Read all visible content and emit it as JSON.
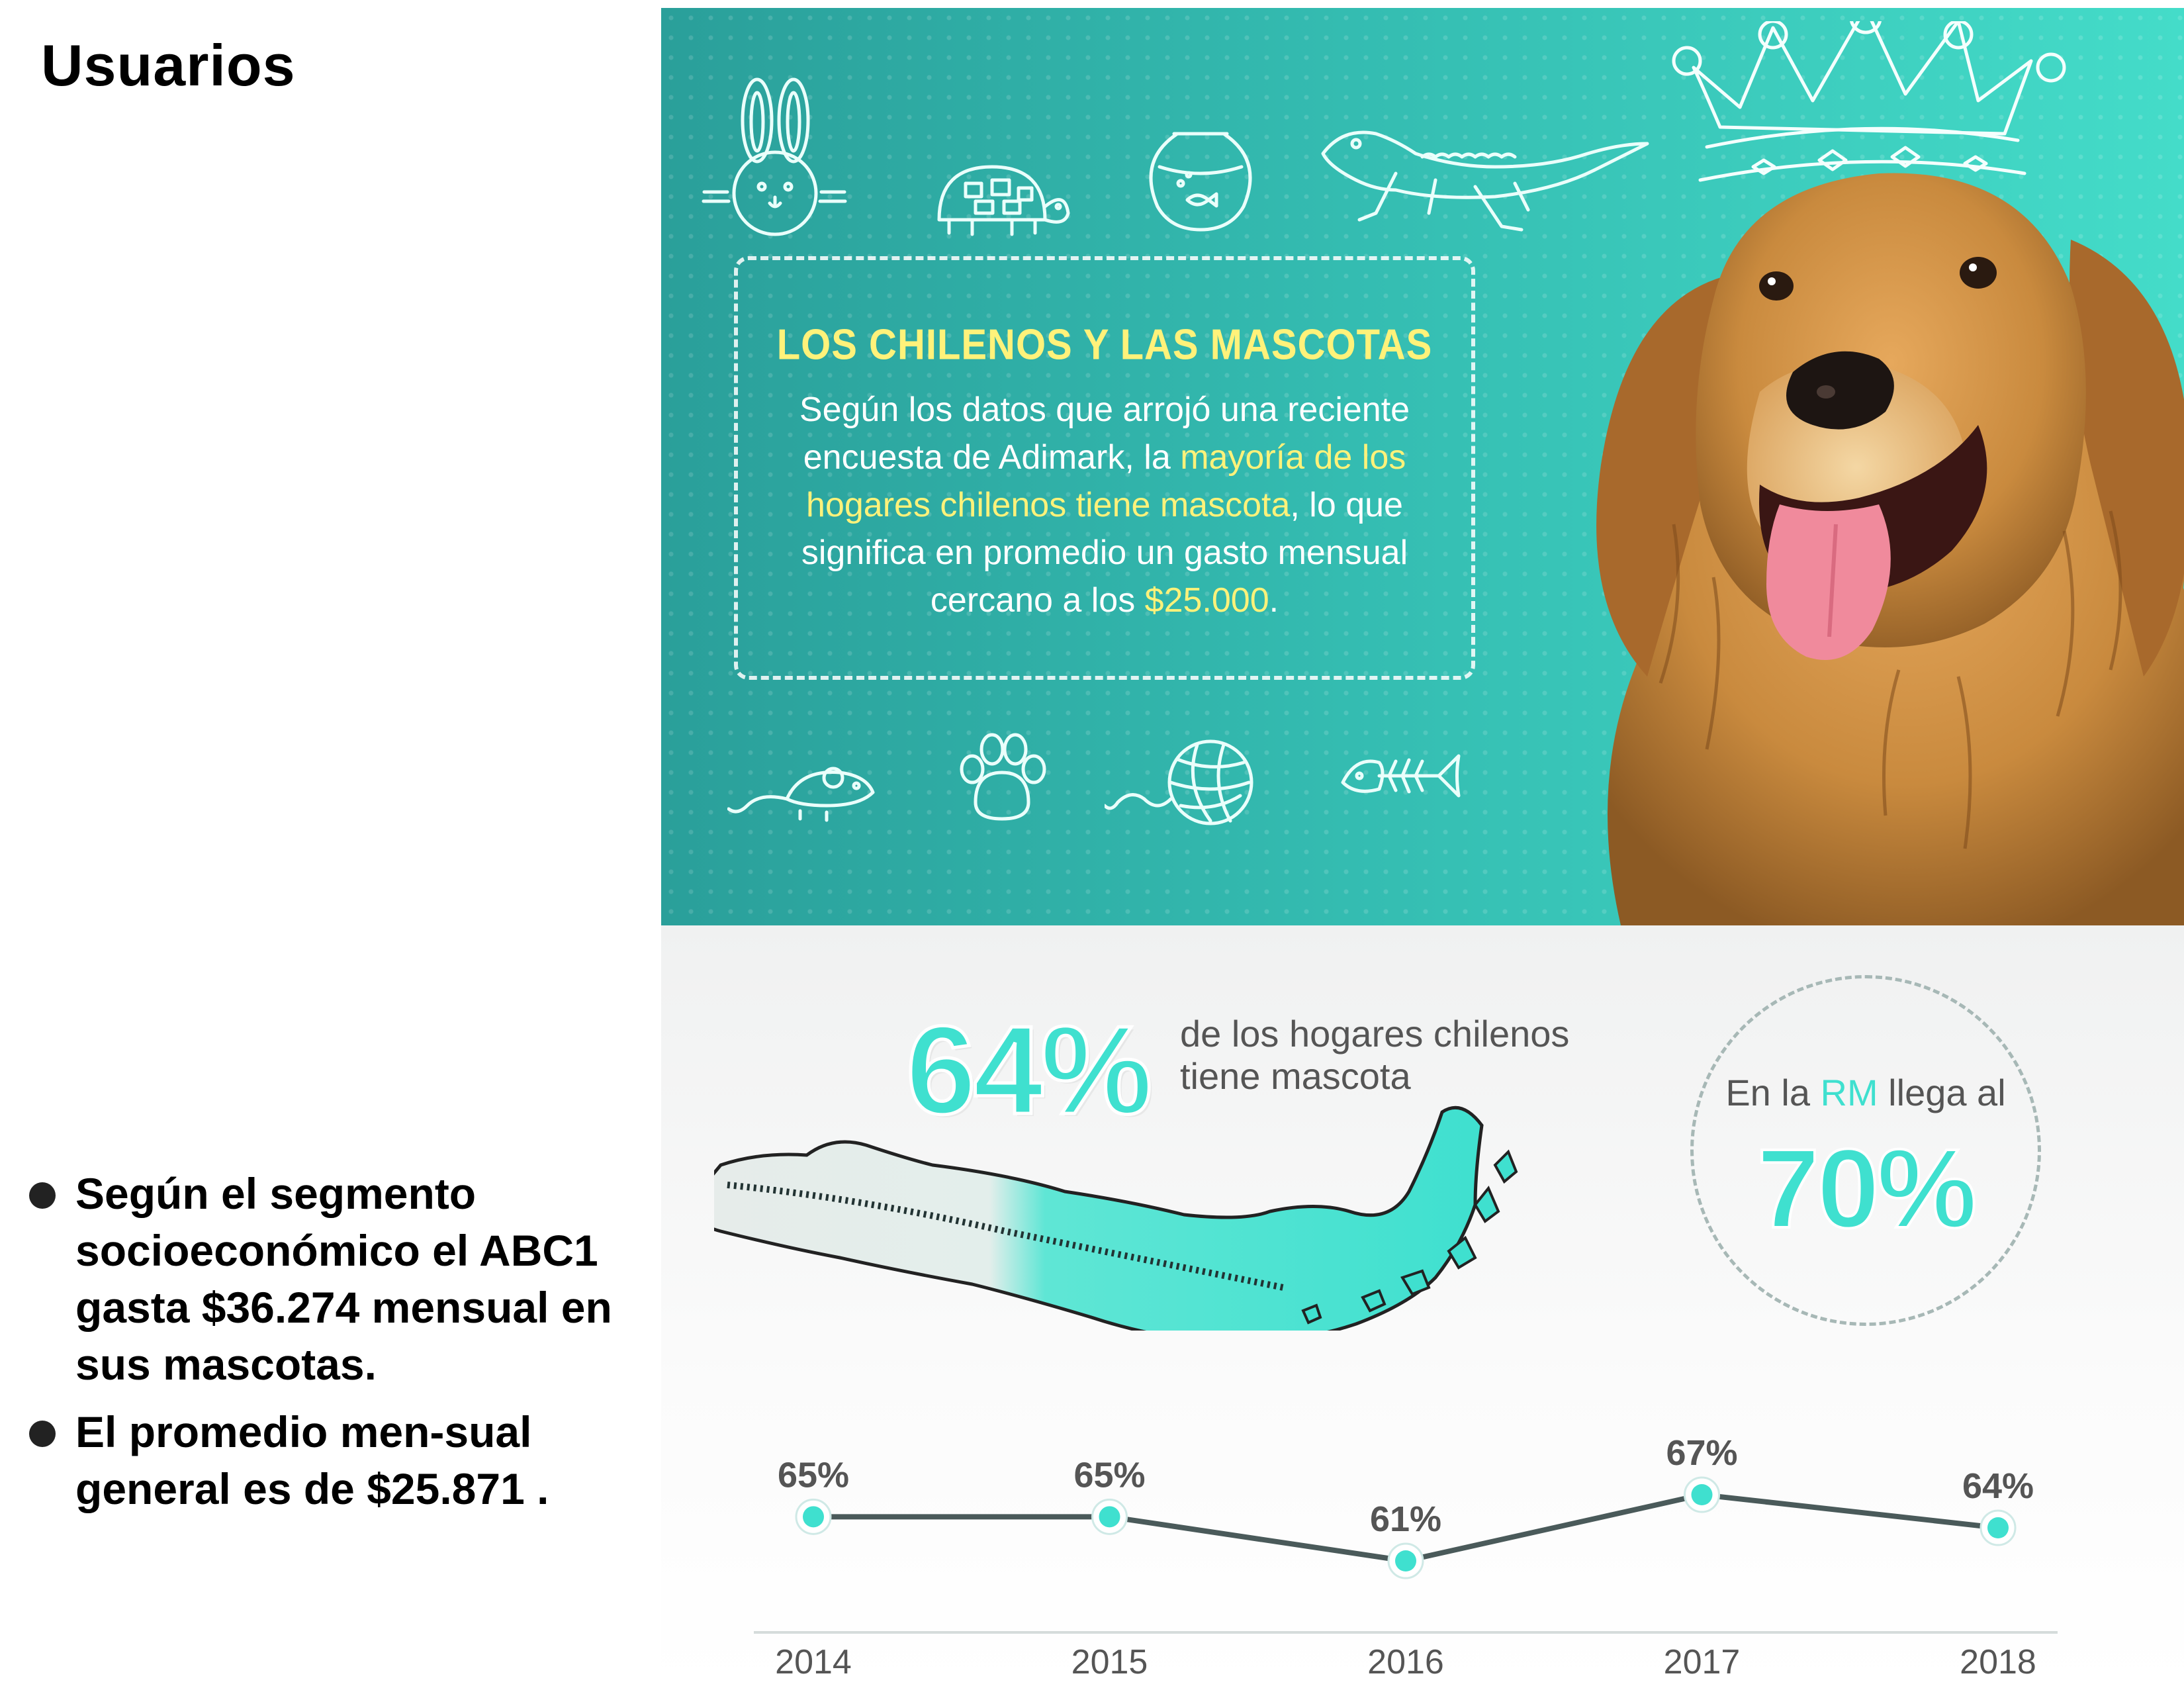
{
  "slide": {
    "title": "Usuarios",
    "bullets": [
      "Según el segmento socioeconómico el ABC1 gasta $36.274 mensual en sus mascotas.",
      "El promedio men-sual general es de $25.871 ."
    ]
  },
  "infographic": {
    "heading": "LOS CHILENOS Y LAS MASCOTAS",
    "body": {
      "part1": "Según los datos que arrojó una reciente encuesta de Adimark, la ",
      "highlight1": "mayoría de los hogares chilenos tiene mascota",
      "part2": ", lo que significa en promedio un gasto mensual cercano a los ",
      "highlight2": "$25.000",
      "part3": "."
    },
    "stat": {
      "value": "64%",
      "caption": "de los hogares chilenos tiene mascota"
    },
    "rm": {
      "prefix": "En la ",
      "region": "RM",
      "suffix": " llega al",
      "value": "70%"
    },
    "colors": {
      "accent": "#3fe0cf",
      "highlight": "#fff27a",
      "teal_bg": "#2fb8ac",
      "line": "#4a5a5a"
    },
    "doodles": [
      "rabbit-icon",
      "turtle-icon",
      "fishbowl-icon",
      "lizard-icon",
      "mouse-icon",
      "paw-print-icon",
      "yarn-ball-icon",
      "fish-bone-icon",
      "crown-icon"
    ]
  },
  "chart_data": {
    "type": "line",
    "x": [
      "2014",
      "2015",
      "2016",
      "2017",
      "2018"
    ],
    "series": [
      {
        "values": [
          65,
          65,
          61,
          67,
          64
        ],
        "labels": [
          "65%",
          "65%",
          "61%",
          "67%",
          "64%"
        ]
      }
    ],
    "title": "",
    "xlabel": "",
    "ylabel": "",
    "grid": false
  }
}
